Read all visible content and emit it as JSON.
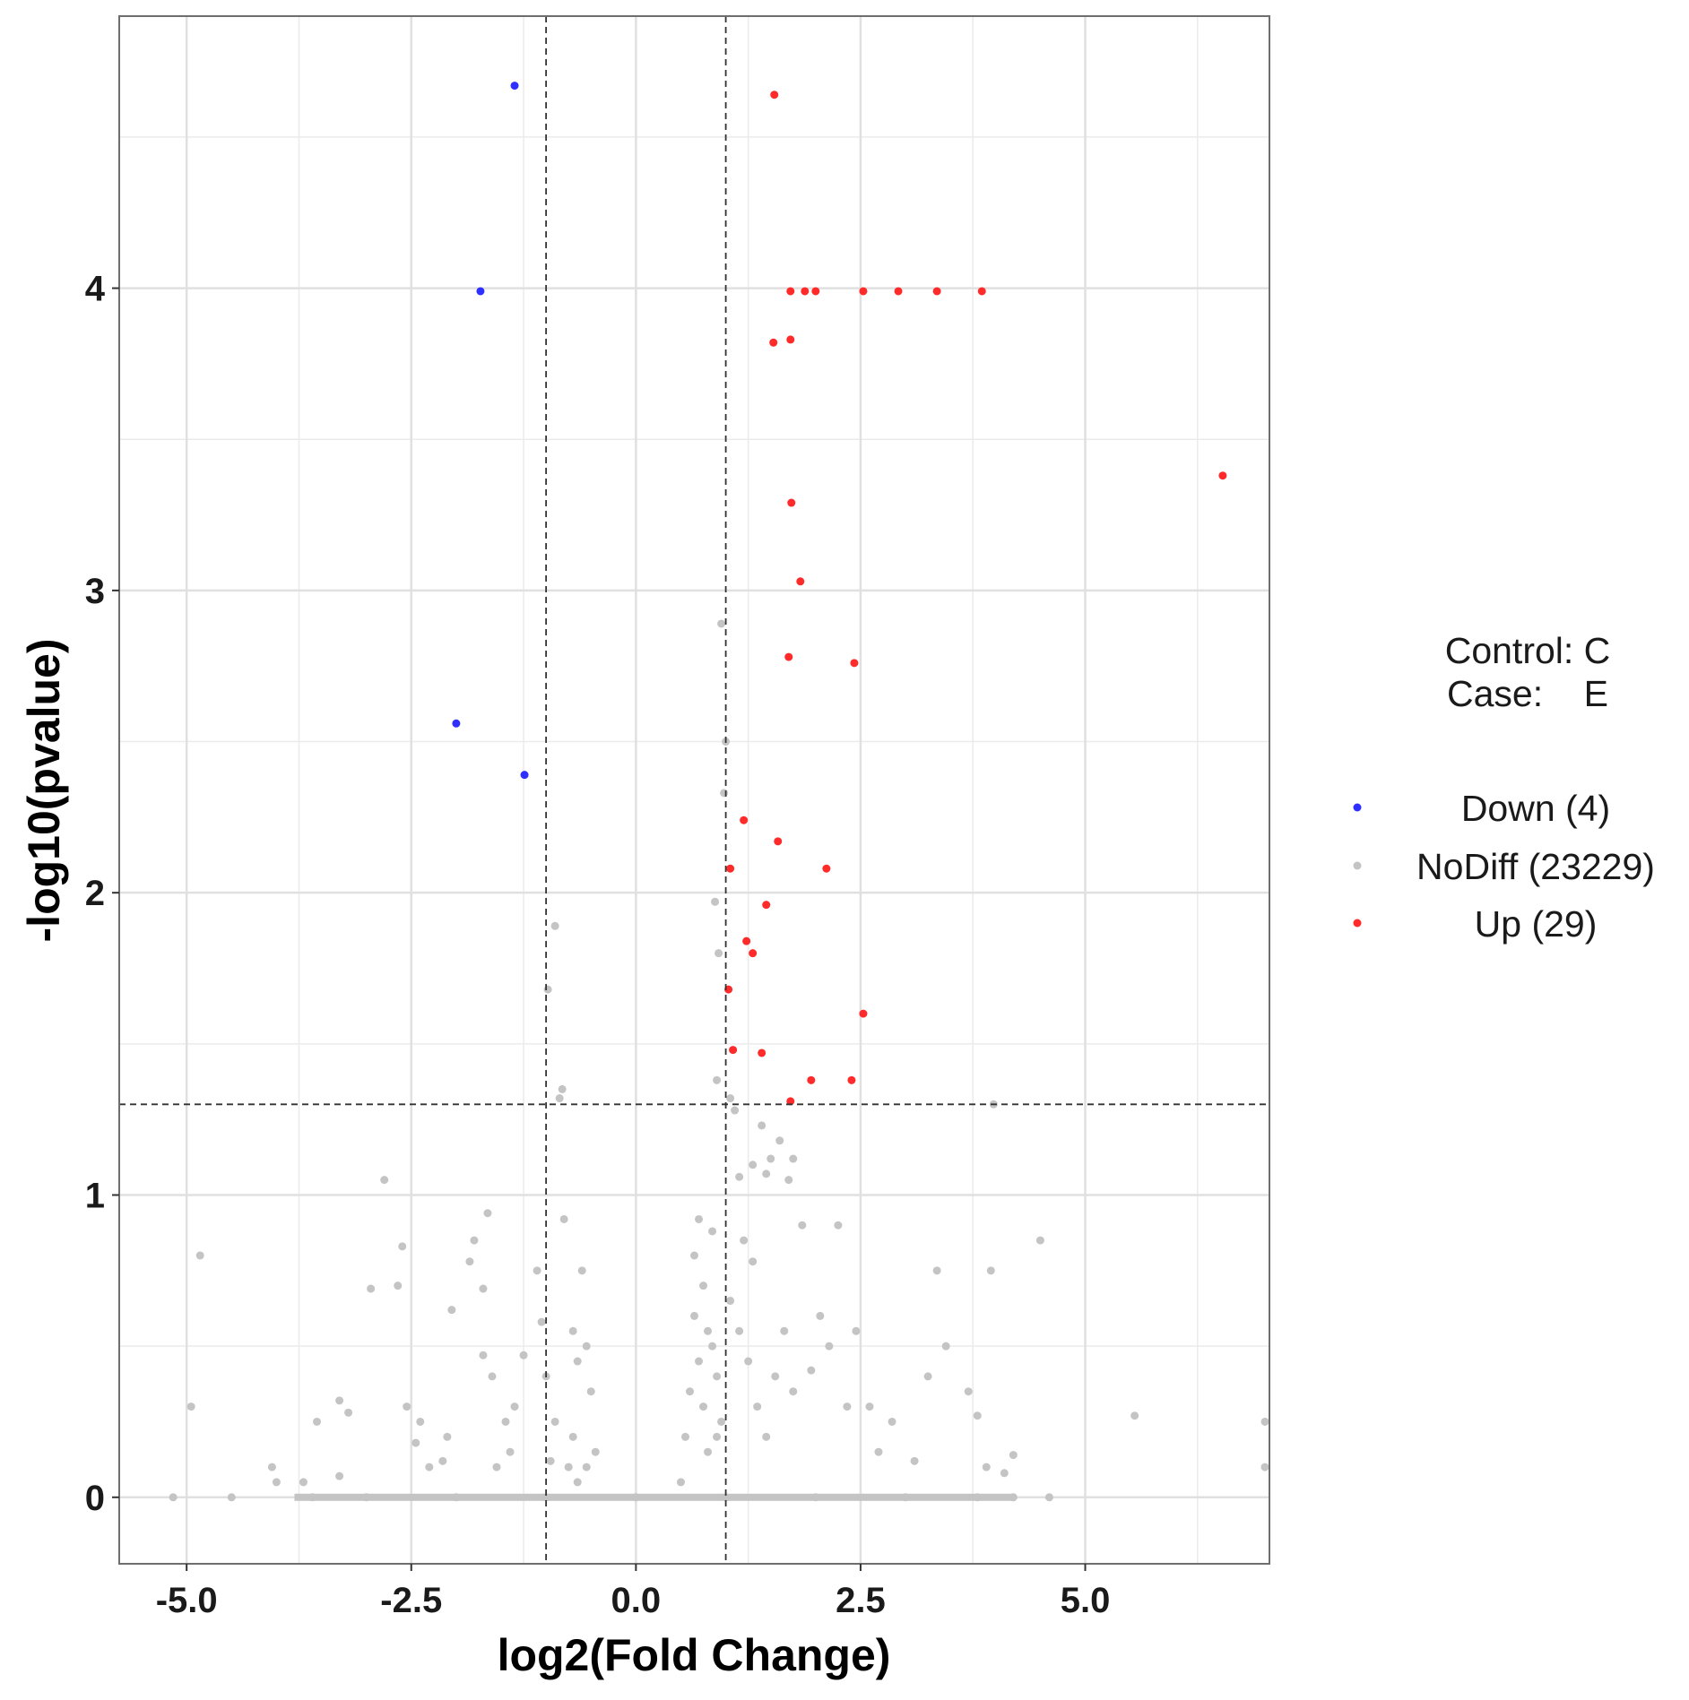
{
  "chart_data": {
    "type": "scatter",
    "title": "",
    "xlabel": "log2(Fold Change)",
    "ylabel": "-log10(pvalue)",
    "xlim": [
      -5.75,
      7.05
    ],
    "ylim": [
      -0.22,
      4.9
    ],
    "x_ticks": [
      -5.0,
      -2.5,
      0.0,
      2.5,
      5.0
    ],
    "x_tick_labels": [
      "-5.0",
      "-2.5",
      "0.0",
      "2.5",
      "5.0"
    ],
    "y_ticks": [
      0,
      1,
      2,
      3,
      4
    ],
    "y_tick_labels": [
      "0",
      "1",
      "2",
      "3",
      "4"
    ],
    "grid": true,
    "thresholds": {
      "log2fc": [
        -1,
        1
      ],
      "neg_log10_p": 1.3
    },
    "annotation": {
      "control_label": "Control: C",
      "case_label": "Case:    E"
    },
    "legend_position": "right",
    "series": [
      {
        "name": "Down (4)",
        "color": "#2f2fff",
        "points": [
          [
            -1.35,
            4.67
          ],
          [
            -1.73,
            3.99
          ],
          [
            -2.0,
            2.56
          ],
          [
            -1.24,
            2.39
          ]
        ]
      },
      {
        "name": "NoDiff (23229)",
        "color": "#c4c4c4",
        "points": [
          [
            -4.85,
            0.8
          ],
          [
            -4.95,
            0.3
          ],
          [
            -5.15,
            0.0
          ],
          [
            -4.5,
            0.0
          ],
          [
            -4.05,
            0.1
          ],
          [
            -4.0,
            0.05
          ],
          [
            -3.7,
            0.05
          ],
          [
            -3.55,
            0.25
          ],
          [
            -3.3,
            0.32
          ],
          [
            -3.2,
            0.28
          ],
          [
            -3.3,
            0.07
          ],
          [
            -2.95,
            0.69
          ],
          [
            -2.8,
            1.05
          ],
          [
            -2.6,
            0.83
          ],
          [
            -2.65,
            0.7
          ],
          [
            -2.55,
            0.3
          ],
          [
            -2.45,
            0.18
          ],
          [
            -2.4,
            0.25
          ],
          [
            -2.3,
            0.1
          ],
          [
            -2.15,
            0.12
          ],
          [
            -2.1,
            0.2
          ],
          [
            -2.05,
            0.62
          ],
          [
            -1.85,
            0.78
          ],
          [
            -1.8,
            0.85
          ],
          [
            -1.7,
            0.69
          ],
          [
            -1.65,
            0.94
          ],
          [
            -1.6,
            0.4
          ],
          [
            -1.55,
            0.1
          ],
          [
            -1.7,
            0.47
          ],
          [
            -1.45,
            0.25
          ],
          [
            -1.4,
            0.15
          ],
          [
            -1.35,
            0.3
          ],
          [
            -1.25,
            0.47
          ],
          [
            -1.1,
            0.75
          ],
          [
            -1.05,
            0.58
          ],
          [
            -1.0,
            0.4
          ],
          [
            -0.98,
            1.68
          ],
          [
            -0.9,
            1.89
          ],
          [
            -0.85,
            1.32
          ],
          [
            -0.82,
            1.35
          ],
          [
            -0.8,
            0.92
          ],
          [
            -0.7,
            0.55
          ],
          [
            -0.65,
            0.45
          ],
          [
            -0.6,
            0.75
          ],
          [
            -0.55,
            0.5
          ],
          [
            -0.5,
            0.35
          ],
          [
            -0.45,
            0.15
          ],
          [
            -0.9,
            0.25
          ],
          [
            -0.75,
            0.1
          ],
          [
            -0.95,
            0.12
          ],
          [
            -0.65,
            0.05
          ],
          [
            -0.7,
            0.2
          ],
          [
            -0.55,
            0.1
          ],
          [
            0.5,
            0.05
          ],
          [
            0.55,
            0.2
          ],
          [
            0.6,
            0.35
          ],
          [
            0.65,
            0.6
          ],
          [
            0.7,
            0.45
          ],
          [
            0.75,
            0.3
          ],
          [
            0.8,
            0.15
          ],
          [
            0.85,
            0.5
          ],
          [
            0.9,
            0.4
          ],
          [
            0.95,
            0.25
          ],
          [
            0.65,
            0.8
          ],
          [
            0.7,
            0.92
          ],
          [
            0.75,
            0.7
          ],
          [
            0.8,
            0.55
          ],
          [
            0.85,
            0.88
          ],
          [
            0.9,
            0.2
          ],
          [
            0.92,
            1.8
          ],
          [
            0.88,
            1.97
          ],
          [
            0.95,
            2.89
          ],
          [
            1.0,
            2.5
          ],
          [
            0.98,
            2.33
          ],
          [
            0.9,
            1.38
          ],
          [
            1.05,
            1.32
          ],
          [
            1.1,
            1.28
          ],
          [
            1.15,
            1.06
          ],
          [
            1.2,
            0.85
          ],
          [
            1.3,
            0.78
          ],
          [
            1.3,
            1.1
          ],
          [
            1.4,
            1.23
          ],
          [
            1.45,
            1.07
          ],
          [
            1.5,
            1.12
          ],
          [
            1.6,
            1.18
          ],
          [
            1.7,
            1.05
          ],
          [
            1.75,
            1.12
          ],
          [
            1.05,
            0.65
          ],
          [
            1.15,
            0.55
          ],
          [
            1.25,
            0.45
          ],
          [
            1.35,
            0.3
          ],
          [
            1.45,
            0.2
          ],
          [
            1.55,
            0.4
          ],
          [
            1.65,
            0.55
          ],
          [
            1.75,
            0.35
          ],
          [
            1.85,
            0.9
          ],
          [
            1.95,
            0.42
          ],
          [
            2.05,
            0.6
          ],
          [
            2.15,
            0.5
          ],
          [
            2.25,
            0.9
          ],
          [
            2.35,
            0.3
          ],
          [
            2.45,
            0.55
          ],
          [
            2.6,
            0.3
          ],
          [
            2.7,
            0.15
          ],
          [
            2.85,
            0.25
          ],
          [
            3.1,
            0.12
          ],
          [
            3.25,
            0.4
          ],
          [
            3.35,
            0.75
          ],
          [
            3.45,
            0.5
          ],
          [
            3.7,
            0.35
          ],
          [
            3.8,
            0.27
          ],
          [
            3.9,
            0.1
          ],
          [
            3.95,
            0.75
          ],
          [
            3.98,
            1.3
          ],
          [
            4.1,
            0.08
          ],
          [
            4.2,
            0.14
          ],
          [
            4.5,
            0.85
          ],
          [
            4.6,
            0.0
          ],
          [
            5.55,
            0.27
          ],
          [
            7.0,
            0.25
          ],
          [
            7.0,
            0.1
          ],
          [
            -3.6,
            0.0
          ],
          [
            -3.0,
            0.0
          ],
          [
            -2.0,
            0.0
          ],
          [
            -1.0,
            0.0
          ],
          [
            0.0,
            0.0
          ],
          [
            1.0,
            0.0
          ],
          [
            2.0,
            0.0
          ],
          [
            3.0,
            0.0
          ],
          [
            3.8,
            0.0
          ],
          [
            4.2,
            0.0
          ]
        ]
      },
      {
        "name": "Up (29)",
        "color": "#ff2b2b",
        "points": [
          [
            1.54,
            4.64
          ],
          [
            1.72,
            3.99
          ],
          [
            1.88,
            3.99
          ],
          [
            2.0,
            3.99
          ],
          [
            2.53,
            3.99
          ],
          [
            2.92,
            3.99
          ],
          [
            3.35,
            3.99
          ],
          [
            3.85,
            3.99
          ],
          [
            1.53,
            3.82
          ],
          [
            1.72,
            3.83
          ],
          [
            6.53,
            3.38
          ],
          [
            1.73,
            3.29
          ],
          [
            1.83,
            3.03
          ],
          [
            1.7,
            2.78
          ],
          [
            2.43,
            2.76
          ],
          [
            1.2,
            2.24
          ],
          [
            1.58,
            2.17
          ],
          [
            1.05,
            2.08
          ],
          [
            2.12,
            2.08
          ],
          [
            1.45,
            1.96
          ],
          [
            1.23,
            1.84
          ],
          [
            1.3,
            1.8
          ],
          [
            1.03,
            1.68
          ],
          [
            2.53,
            1.6
          ],
          [
            1.08,
            1.48
          ],
          [
            1.4,
            1.47
          ],
          [
            1.95,
            1.38
          ],
          [
            2.4,
            1.38
          ],
          [
            1.72,
            1.31
          ]
        ]
      }
    ]
  }
}
